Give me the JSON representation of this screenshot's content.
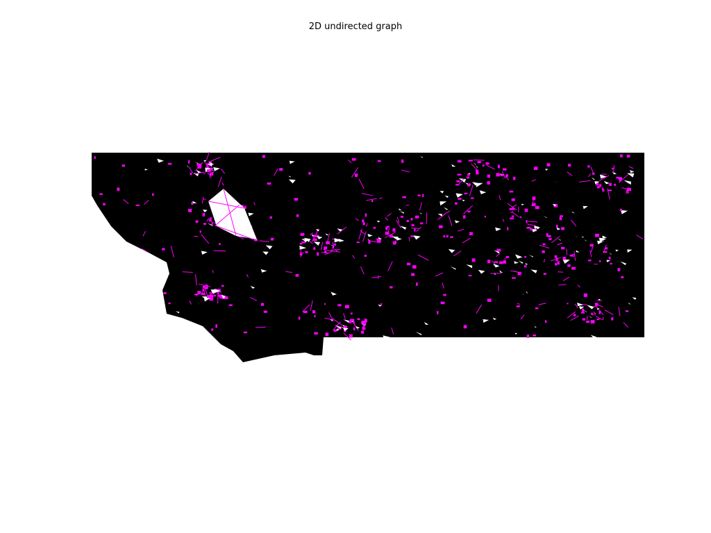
{
  "figure": {
    "title": "2D undirected graph",
    "node_color": "#000000",
    "edge_color": "#ff00ff",
    "background": "#ffffff"
  }
}
